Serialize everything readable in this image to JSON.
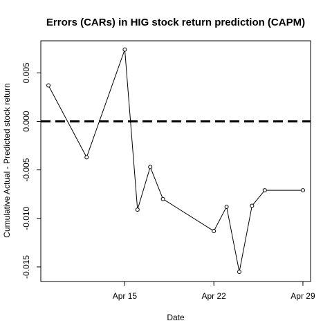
{
  "chart_data": {
    "type": "line",
    "title": "Errors (CARs) in HIG stock return prediction (CAPM)",
    "xlabel": "Date",
    "ylabel": "Cumulative Actual - Predicted stock return",
    "x_ticks": [
      "Apr 15",
      "Apr 22",
      "Apr 29"
    ],
    "x_tick_days": [
      15,
      22,
      29
    ],
    "xlim": [
      8.4,
      29.6
    ],
    "y_ticks": [
      "-0.015",
      "-0.010",
      "-0.005",
      "0.000",
      "0.005"
    ],
    "y_tick_values": [
      -0.015,
      -0.01,
      -0.005,
      0.0,
      0.005
    ],
    "ylim": [
      -0.0165,
      0.0083
    ],
    "reference_line": {
      "y": 0.0,
      "style": "dashed"
    },
    "grid": false,
    "series": [
      {
        "marker": "open-circle",
        "color": "#000000",
        "x_days": [
          9,
          12,
          15,
          16,
          17,
          18,
          22,
          23,
          24,
          25,
          26,
          29
        ],
        "y": [
          0.0037,
          -0.0037,
          0.0074,
          -0.0091,
          -0.0047,
          -0.008,
          -0.0113,
          -0.0088,
          -0.0155,
          -0.0087,
          -0.0071,
          -0.0071
        ]
      }
    ]
  }
}
